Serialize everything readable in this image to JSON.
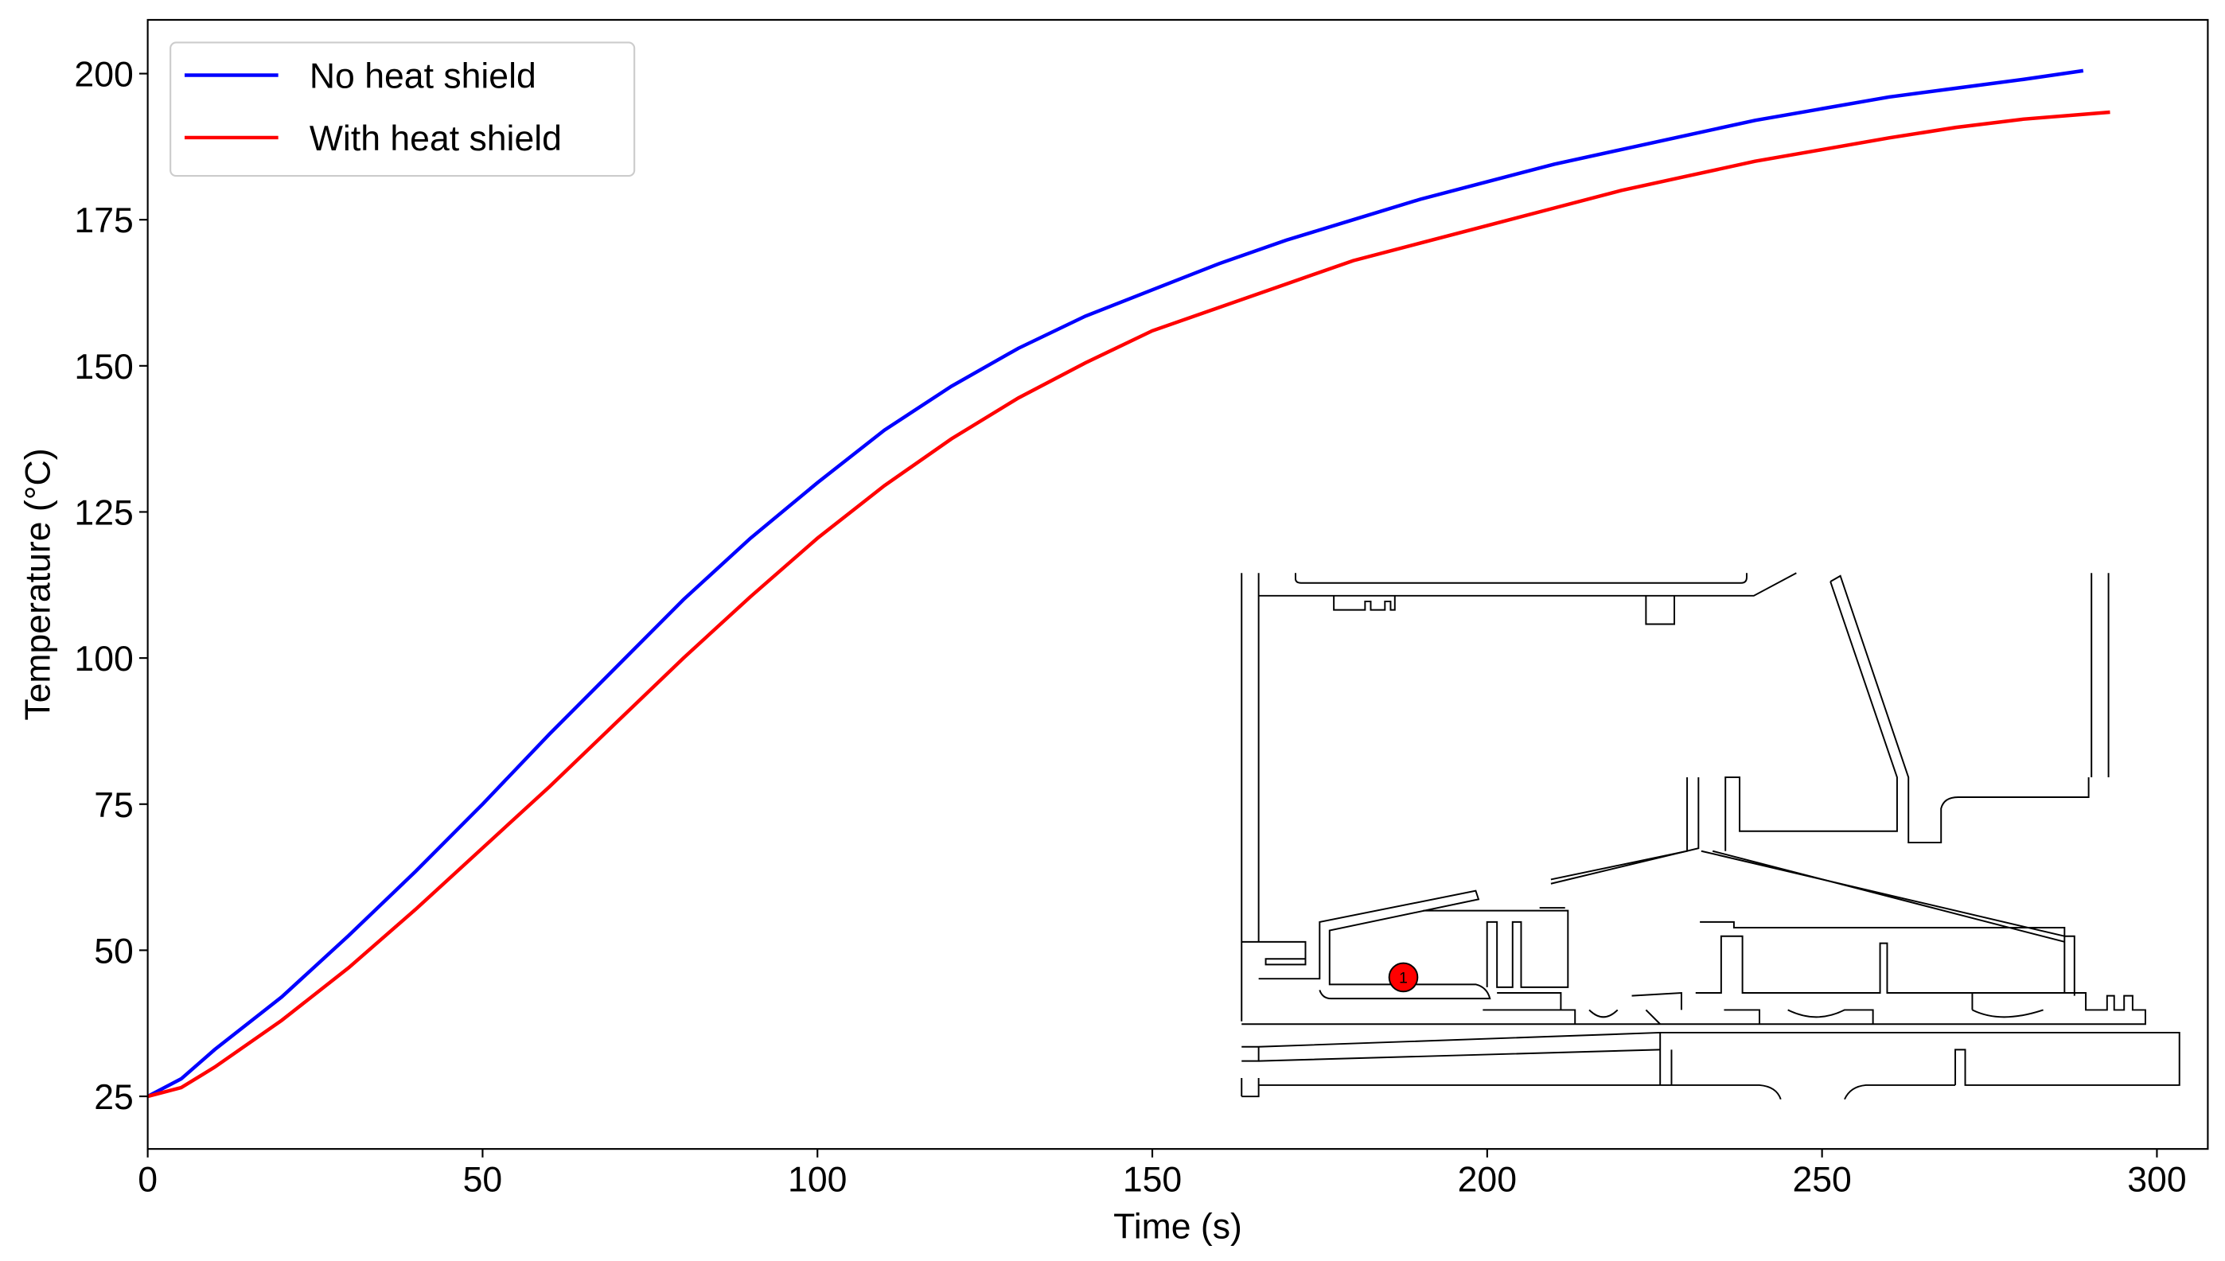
{
  "chart_data": {
    "type": "line",
    "xlabel": "Time (s)",
    "ylabel": "Temperature (°C)",
    "xlim": [
      0,
      307.6
    ],
    "ylim": [
      16,
      209.2
    ],
    "xticks": [
      0,
      50,
      100,
      150,
      200,
      250,
      300
    ],
    "yticks": [
      25,
      50,
      75,
      100,
      125,
      150,
      175,
      200
    ],
    "legend": "upper left",
    "annotations": [
      "1"
    ],
    "series": [
      {
        "name": "No heat shield",
        "color": "#0000ff",
        "x": [
          0,
          5,
          10,
          20,
          30,
          40,
          50,
          60,
          70,
          80,
          90,
          100,
          110,
          120,
          130,
          140,
          150,
          160,
          170,
          180,
          190,
          200,
          210,
          220,
          230,
          240,
          250,
          260,
          270,
          280,
          289
        ],
        "values": [
          25,
          28,
          33,
          42,
          52.5,
          63.5,
          75,
          87,
          98.5,
          110,
          120.5,
          130,
          139,
          146.5,
          153,
          158.5,
          163,
          167.5,
          171.5,
          175,
          178.5,
          181.5,
          184.5,
          187,
          189.5,
          192,
          194,
          196,
          197.5,
          199,
          200.5
        ]
      },
      {
        "name": "With heat shield",
        "color": "#ff0000",
        "x": [
          0,
          5,
          10,
          20,
          30,
          40,
          50,
          60,
          70,
          80,
          90,
          100,
          110,
          120,
          130,
          140,
          150,
          160,
          170,
          180,
          190,
          200,
          210,
          220,
          230,
          240,
          250,
          260,
          270,
          280,
          293
        ],
        "values": [
          25,
          26.5,
          30,
          38,
          47,
          57,
          67.5,
          78,
          89,
          100,
          110.5,
          120.5,
          129.5,
          137.5,
          144.5,
          150.5,
          156,
          160,
          164,
          168,
          171,
          174,
          177,
          180,
          182.5,
          185,
          187,
          189,
          190.8,
          192.2,
          193.4
        ]
      }
    ]
  }
}
